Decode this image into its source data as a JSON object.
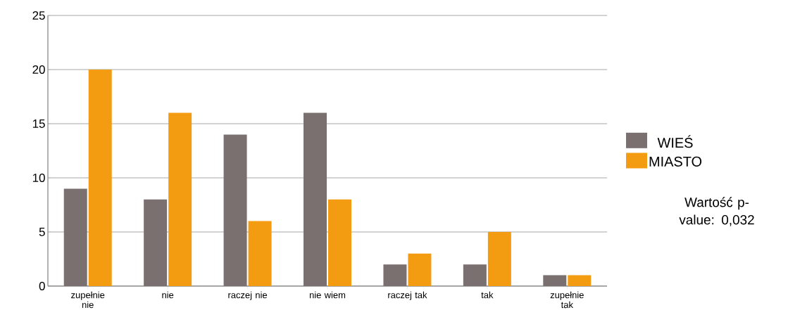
{
  "chart_data": {
    "type": "bar",
    "categories": [
      "zupełnie nie",
      "nie",
      "raczej nie",
      "nie wiem",
      "raczej tak",
      "tak",
      "zupełnie tak"
    ],
    "series": [
      {
        "name": "WIEŚ",
        "color": "#7a7070",
        "values": [
          9,
          8,
          14,
          16,
          2,
          2,
          1
        ]
      },
      {
        "name": "MIASTO",
        "color": "#f39c12",
        "values": [
          20,
          16,
          6,
          8,
          3,
          5,
          1
        ]
      }
    ],
    "ylim": [
      0,
      25
    ],
    "yticks": [
      0,
      5,
      10,
      15,
      20,
      25
    ],
    "grid": "y",
    "legend": "right",
    "annotations": [
      "Wartość p-value: 0,032"
    ]
  }
}
